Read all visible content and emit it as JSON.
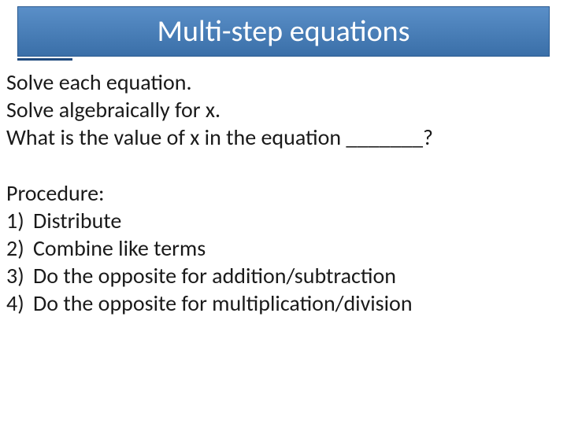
{
  "title": {
    "text": "Multi-step equations",
    "background_gradient_top": "#5a8fc8",
    "background_gradient_bottom": "#3a6fa8",
    "text_color": "#ffffff",
    "fontsize": 38
  },
  "instructions": {
    "line1": "Solve each equation.",
    "line2": "Solve algebraically for x.",
    "line3": "What is the value of x in the equation _______?"
  },
  "procedure": {
    "title": "Procedure:",
    "items": [
      {
        "num": "1)",
        "text": "Distribute"
      },
      {
        "num": "2)",
        "text": "Combine like terms"
      },
      {
        "num": "3)",
        "text": "Do the opposite for addition/subtraction"
      },
      {
        "num": "4)",
        "text": "Do the opposite for multiplication/division"
      }
    ]
  },
  "body_text_color": "#1a1a1a",
  "body_fontsize": 28,
  "background_color": "#ffffff"
}
